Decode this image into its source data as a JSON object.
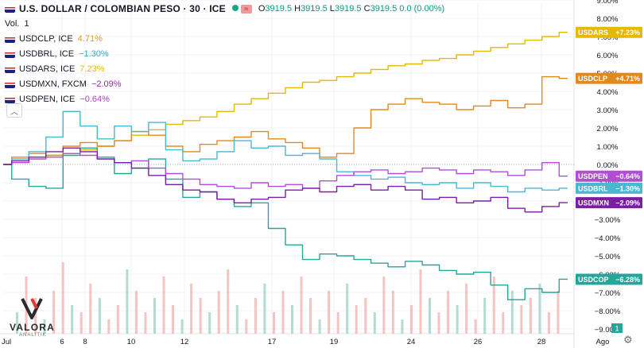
{
  "header": {
    "title": "U.S. DOLLAR / COLOMBIAN PESO · 30 · ICE",
    "ohlc": [
      {
        "k": "O",
        "v": "3919.5"
      },
      {
        "k": "H",
        "v": "3919.5"
      },
      {
        "k": "L",
        "v": "3919.5"
      },
      {
        "k": "C",
        "v": "3919.5"
      }
    ],
    "change": "0.0 (0.00%)",
    "volume_label": "Vol.",
    "volume_value": "1"
  },
  "legend": [
    {
      "symbol": "USDCLP, ICE",
      "change": "4.71%",
      "color": "#e59a1a"
    },
    {
      "symbol": "USDBRL, ICE",
      "change": "−1.30%",
      "color": "#2fa8c9"
    },
    {
      "symbol": "USDARS, ICE",
      "change": "7.23%",
      "color": "#e6b800"
    },
    {
      "symbol": "USDMXN, FXCM",
      "change": "−2.09%",
      "color": "#9c27b0"
    },
    {
      "symbol": "USDPEN, ICE",
      "change": "−0.64%",
      "color": "#ab47bc"
    }
  ],
  "watermark": {
    "name": "VALORA",
    "sub": "ANALITIK"
  },
  "chart_data": {
    "type": "line",
    "x_tick_labels": [
      "Jul",
      "6",
      "8",
      "10",
      "12",
      "17",
      "19",
      "24",
      "26",
      "28",
      "Ago"
    ],
    "y_axis_labels": [
      "9.00%",
      "8.00%",
      "7.00%",
      "6.00%",
      "5.00%",
      "4.00%",
      "3.00%",
      "2.00%",
      "1.00%",
      "0.00%",
      "−1.00%",
      "−2.00%",
      "−3.00%",
      "−4.00%",
      "−5.00%",
      "−6.00%",
      "−7.00%",
      "−8.00%",
      "−9.00%"
    ],
    "ylim": [
      -9.6,
      9.3
    ],
    "grid": true,
    "series": [
      {
        "name": "USDARS",
        "color": "#e6b800",
        "last_label": "+7.23%",
        "values": [
          0.0,
          0.2,
          0.3,
          0.5,
          0.6,
          0.8,
          1.0,
          1.3,
          1.6,
          1.9,
          2.2,
          2.4,
          2.6,
          2.9,
          3.3,
          3.6,
          3.9,
          4.2,
          4.5,
          4.6,
          4.8,
          5.0,
          5.2,
          5.4,
          5.5,
          5.7,
          5.8,
          6.0,
          6.2,
          6.4,
          6.6,
          6.8,
          7.0,
          7.23
        ]
      },
      {
        "name": "USDCLP",
        "color": "#e08a1e",
        "last_label": "+4.71%",
        "values": [
          0.0,
          0.4,
          0.6,
          0.5,
          1.0,
          1.2,
          1.0,
          1.3,
          1.8,
          1.6,
          1.0,
          0.7,
          1.1,
          1.3,
          1.5,
          1.8,
          1.4,
          1.2,
          0.9,
          0.4,
          0.6,
          2.0,
          3.0,
          3.3,
          3.6,
          3.4,
          3.3,
          3.0,
          3.2,
          3.5,
          3.1,
          3.3,
          4.8,
          4.71
        ]
      },
      {
        "name": "USDCOP",
        "color": "#26a69a",
        "last_label": "−6.28%",
        "values": [
          0.0,
          -0.8,
          -1.2,
          -1.3,
          0.5,
          0.9,
          0.4,
          -0.5,
          -0.2,
          0.3,
          -0.8,
          -1.8,
          -1.5,
          -1.9,
          -2.3,
          -2.1,
          -3.5,
          -4.4,
          -5.2,
          -4.9,
          -5.0,
          -5.2,
          -5.4,
          -5.6,
          -5.3,
          -5.5,
          -5.8,
          -6.0,
          -5.9,
          -6.6,
          -7.4,
          -6.8,
          -7.0,
          -6.28
        ]
      },
      {
        "name": "USDBRL",
        "color": "#4ab8d0",
        "last_label": "−1.30%",
        "values": [
          0.0,
          0.3,
          0.7,
          1.5,
          2.9,
          2.1,
          1.4,
          2.1,
          1.8,
          2.3,
          0.8,
          0.2,
          0.3,
          0.7,
          1.3,
          0.9,
          1.0,
          0.5,
          0.6,
          0.3,
          -0.4,
          -0.6,
          -0.8,
          -0.7,
          -1.0,
          -1.1,
          -1.0,
          -1.3,
          -1.0,
          -1.2,
          -1.5,
          -1.3,
          -1.4,
          -1.3
        ]
      },
      {
        "name": "USDPEN",
        "color": "#b04fd3",
        "last_label": "−0.64%",
        "values": [
          0.0,
          0.1,
          0.3,
          0.4,
          0.6,
          0.5,
          0.3,
          0.1,
          0.2,
          -0.2,
          -0.5,
          -0.8,
          -1.1,
          -1.2,
          -1.3,
          -1.0,
          -1.2,
          -1.1,
          -1.3,
          -0.9,
          -0.6,
          -0.4,
          -0.3,
          -0.5,
          -0.4,
          -0.2,
          -0.3,
          -0.5,
          -0.3,
          -0.4,
          -0.6,
          -0.3,
          0.1,
          -0.64
        ]
      },
      {
        "name": "USDMXN",
        "color": "#7b1fa2",
        "last_label": "−2.09%",
        "values": [
          0.0,
          0.2,
          0.4,
          0.7,
          0.9,
          0.7,
          0.3,
          0.1,
          -0.2,
          -0.6,
          -1.1,
          -1.4,
          -1.5,
          -1.9,
          -2.1,
          -1.9,
          -1.8,
          -1.4,
          -1.3,
          -1.5,
          -1.2,
          -1.1,
          -1.4,
          -1.2,
          -1.4,
          -1.9,
          -1.8,
          -2.1,
          -2.0,
          -1.8,
          -2.4,
          -2.6,
          -2.3,
          -2.09
        ]
      }
    ],
    "volume": [
      0.3,
      0.8,
      0.5,
      0.2,
      0.6,
      1.0,
      0.4,
      0.3,
      0.7,
      0.5,
      0.2,
      0.4,
      0.9,
      0.6,
      0.3,
      0.5,
      0.8,
      0.4,
      0.2,
      0.7,
      0.5,
      0.3,
      0.6,
      0.9,
      0.4,
      0.2,
      0.5,
      0.7,
      0.3,
      0.6,
      0.4,
      0.8,
      0.5,
      0.2,
      0.6,
      0.3,
      0.7,
      0.4,
      0.5,
      0.3,
      0.8,
      0.6,
      0.2,
      0.4,
      0.9,
      0.5,
      0.3,
      0.6,
      0.4,
      0.7,
      0.2,
      0.5,
      0.8,
      0.3,
      0.6,
      0.4,
      0.5,
      0.7,
      0.3,
      0.6
    ],
    "volume_last_label": "1"
  }
}
